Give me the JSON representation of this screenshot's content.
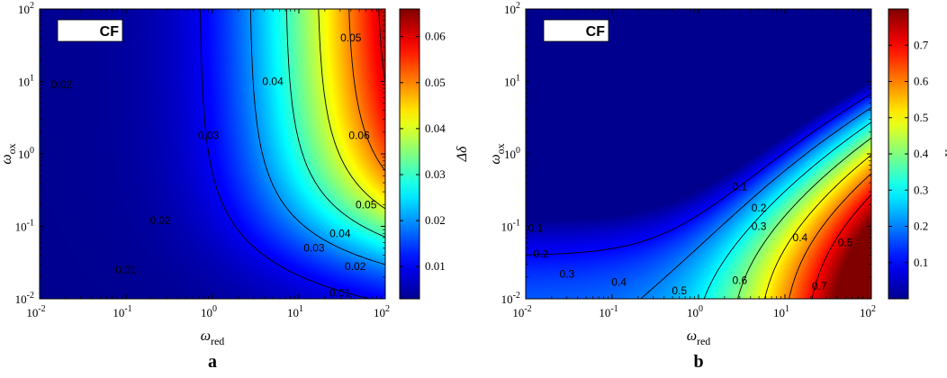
{
  "colors": {
    "jet": [
      "#00008f",
      "#0000ff",
      "#0080ff",
      "#00ffff",
      "#80ff80",
      "#ffff00",
      "#ff8000",
      "#ff0000",
      "#800000"
    ]
  },
  "chart_data": [
    {
      "type": "heatmap",
      "panel_label": "a",
      "box_label": "CF",
      "xlabel": "ω",
      "xlabel_sub": "red",
      "ylabel": "ω",
      "ylabel_sub": "ox",
      "x_scale": "log",
      "y_scale": "log",
      "xlim": [
        0.01,
        100
      ],
      "ylim": [
        0.01,
        100
      ],
      "x_ticks": [
        {
          "base": "10",
          "exp": "-2"
        },
        {
          "base": "10",
          "exp": "-1"
        },
        {
          "base": "10",
          "exp": "0"
        },
        {
          "base": "10",
          "exp": "1"
        },
        {
          "base": "10",
          "exp": "2"
        }
      ],
      "y_ticks": [
        {
          "base": "10",
          "exp": "-2"
        },
        {
          "base": "10",
          "exp": "-1"
        },
        {
          "base": "10",
          "exp": "0"
        },
        {
          "base": "10",
          "exp": "1"
        },
        {
          "base": "10",
          "exp": "2"
        }
      ],
      "colorbar": {
        "label": "Δδ",
        "min": 0.003,
        "max": 0.066,
        "ticks": [
          "0.01",
          "0.02",
          "0.03",
          "0.04",
          "0.05",
          "0.06"
        ],
        "tick_values": [
          0.01,
          0.02,
          0.03,
          0.04,
          0.05,
          0.06
        ]
      },
      "contour_levels": [
        "0.01",
        "0.02",
        "0.03",
        "0.04",
        "0.05",
        "0.06"
      ],
      "contour_level_values": [
        0.01,
        0.02,
        0.03,
        0.04,
        0.05,
        0.06
      ],
      "contour_labels": [
        {
          "text": "0.02",
          "x": 0.018,
          "y": 9
        },
        {
          "text": "0.03",
          "x": 0.9,
          "y": 1.8
        },
        {
          "text": "0.04",
          "x": 5,
          "y": 10
        },
        {
          "text": "0.05",
          "x": 40,
          "y": 40
        },
        {
          "text": "0.06",
          "x": 50,
          "y": 1.8
        },
        {
          "text": "0.02",
          "x": 0.25,
          "y": 0.12
        },
        {
          "text": "0.05",
          "x": 60,
          "y": 0.2
        },
        {
          "text": "0.04",
          "x": 30,
          "y": 0.08
        },
        {
          "text": "0.03",
          "x": 15,
          "y": 0.05
        },
        {
          "text": "0.02",
          "x": 45,
          "y": 0.028
        },
        {
          "text": "0.01",
          "x": 0.1,
          "y": 0.025
        },
        {
          "text": "0.01",
          "x": 30,
          "y": 0.012
        }
      ]
    },
    {
      "type": "heatmap",
      "panel_label": "b",
      "box_label": "CF",
      "xlabel": "ω",
      "xlabel_sub": "red",
      "ylabel": "ω",
      "ylabel_sub": "ox",
      "x_scale": "log",
      "y_scale": "log",
      "xlim": [
        0.01,
        100
      ],
      "ylim": [
        0.01,
        100
      ],
      "x_ticks": [
        {
          "base": "10",
          "exp": "-2"
        },
        {
          "base": "10",
          "exp": "-1"
        },
        {
          "base": "10",
          "exp": "0"
        },
        {
          "base": "10",
          "exp": "1"
        },
        {
          "base": "10",
          "exp": "2"
        }
      ],
      "y_ticks": [
        {
          "base": "10",
          "exp": "-2"
        },
        {
          "base": "10",
          "exp": "-1"
        },
        {
          "base": "10",
          "exp": "0"
        },
        {
          "base": "10",
          "exp": "1"
        },
        {
          "base": "10",
          "exp": "2"
        }
      ],
      "colorbar": {
        "label": "X",
        "min": 0.0,
        "max": 0.8,
        "ticks": [
          "0.1",
          "0.2",
          "0.3",
          "0.4",
          "0.5",
          "0.6",
          "0.7"
        ],
        "tick_values": [
          0.1,
          0.2,
          0.3,
          0.4,
          0.5,
          0.6,
          0.7
        ]
      },
      "contour_levels": [
        "0.1",
        "0.2",
        "0.3",
        "0.4",
        "0.5",
        "0.6",
        "0.7"
      ],
      "contour_level_values": [
        0.1,
        0.2,
        0.3,
        0.4,
        0.5,
        0.6,
        0.7
      ],
      "contour_labels": [
        {
          "text": "0.1",
          "x": 3,
          "y": 0.35
        },
        {
          "text": "0.2",
          "x": 5,
          "y": 0.18
        },
        {
          "text": "0.3",
          "x": 5,
          "y": 0.1
        },
        {
          "text": "0.4",
          "x": 15,
          "y": 0.07
        },
        {
          "text": "0.5",
          "x": 50,
          "y": 0.06
        },
        {
          "text": "0.1",
          "x": 0.013,
          "y": 0.095
        },
        {
          "text": "0.2",
          "x": 0.015,
          "y": 0.042
        },
        {
          "text": "0.3",
          "x": 0.03,
          "y": 0.022
        },
        {
          "text": "0.4",
          "x": 0.12,
          "y": 0.017
        },
        {
          "text": "0.5",
          "x": 0.6,
          "y": 0.013
        },
        {
          "text": "0.6",
          "x": 3,
          "y": 0.018
        },
        {
          "text": "0.7",
          "x": 25,
          "y": 0.015
        }
      ]
    }
  ]
}
